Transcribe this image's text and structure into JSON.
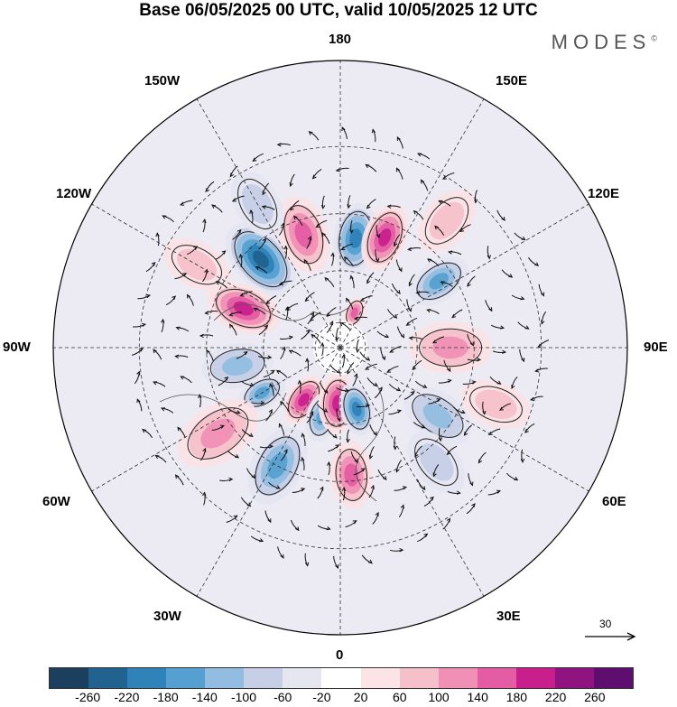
{
  "title": "Base 06/05/2025 00 UTC, valid 10/05/2025 12 UTC",
  "brand": "MODES",
  "brand_mark": "©",
  "longitude_labels": {
    "top": "180",
    "bottom": "0",
    "left": "90W",
    "right": "90E",
    "upper_left_1": "150W",
    "upper_left_2": "120W",
    "lower_left_1": "60W",
    "lower_left_2": "30W",
    "upper_right_1": "150E",
    "upper_right_2": "120E",
    "lower_right_1": "60E",
    "lower_right_2": "30E"
  },
  "reference_vector": {
    "label": "30",
    "icon": "arrow-right-icon"
  },
  "colorbar": {
    "colors": [
      "#1c3f5e",
      "#21628f",
      "#2f83b8",
      "#55a0d0",
      "#93bde0",
      "#c6cfe6",
      "#e6e6f1",
      "#ffffff",
      "#fbe3e6",
      "#f5c0c9",
      "#ef90b4",
      "#e45ca3",
      "#c91f8c",
      "#8f1480",
      "#5e0e6e"
    ],
    "ticks": [
      "-260",
      "-220",
      "-180",
      "-140",
      "-100",
      "-60",
      "-20",
      "20",
      "60",
      "100",
      "140",
      "180",
      "220",
      "260"
    ]
  },
  "map": {
    "projection": "north polar stereographic",
    "anomaly_blobs": [
      {
        "value": -230,
        "lon": -138,
        "lat": 45,
        "r": 48
      },
      {
        "value": -200,
        "lon": 172,
        "lat": 48,
        "r": 40
      },
      {
        "value": 190,
        "lon": 158,
        "lat": 45,
        "r": 38
      },
      {
        "value": 170,
        "lon": -162,
        "lat": 45,
        "r": 44
      },
      {
        "value": 150,
        "lon": 158,
        "lat": 75,
        "r": 18
      },
      {
        "value": -160,
        "lon": 124,
        "lat": 45,
        "r": 36
      },
      {
        "value": 200,
        "lon": -112,
        "lat": 50,
        "r": 42
      },
      {
        "value": -130,
        "lon": -80,
        "lat": 50,
        "r": 40
      },
      {
        "value": -150,
        "lon": -60,
        "lat": 55,
        "r": 28
      },
      {
        "value": 180,
        "lon": -35,
        "lat": 65,
        "r": 30
      },
      {
        "value": -170,
        "lon": -15,
        "lat": 62,
        "r": 28
      },
      {
        "value": 180,
        "lon": -3,
        "lat": 68,
        "r": 34
      },
      {
        "value": -180,
        "lon": 15,
        "lat": 65,
        "r": 30
      },
      {
        "value": -170,
        "lon": -28,
        "lat": 40,
        "r": 46
      },
      {
        "value": 150,
        "lon": 5,
        "lat": 42,
        "r": 38
      },
      {
        "value": 120,
        "lon": -55,
        "lat": 35,
        "r": 50
      },
      {
        "value": 110,
        "lon": 90,
        "lat": 48,
        "r": 46
      },
      {
        "value": -100,
        "lon": 55,
        "lat": 45,
        "r": 42
      },
      {
        "value": 70,
        "lon": -120,
        "lat": 30,
        "r": 40
      },
      {
        "value": -80,
        "lon": -150,
        "lat": 30,
        "r": 40
      },
      {
        "value": -70,
        "lon": 40,
        "lat": 35,
        "r": 40
      },
      {
        "value": 60,
        "lon": 140,
        "lat": 30,
        "r": 40
      },
      {
        "value": 60,
        "lon": 70,
        "lat": 30,
        "r": 40
      }
    ]
  }
}
